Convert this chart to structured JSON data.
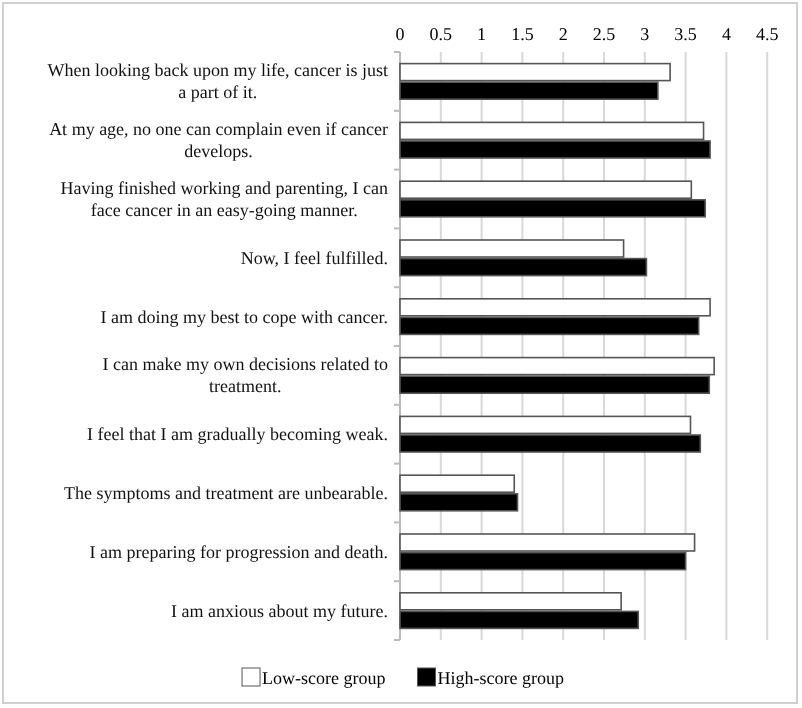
{
  "chart_data": {
    "type": "bar",
    "orientation": "horizontal",
    "categories": [
      "When looking back upon my life, cancer is just a part of it.",
      "At my age, no one can complain even if cancer develops.",
      "Having finished working and parenting, I can face cancer in an easy-going manner.",
      "Now, I feel fulfilled.",
      "I am doing my best to cope with cancer.",
      "I can make my own decisions related to treatment.",
      "I feel that I am gradually becoming weak.",
      "The symptoms and treatment are unbearable.",
      "I am preparing for progression and death.",
      "I am anxious about my future."
    ],
    "series": [
      {
        "name": "Low-score group",
        "color": "#ffffff",
        "values": [
          3.31,
          3.72,
          3.57,
          2.74,
          3.8,
          3.85,
          3.56,
          1.4,
          3.61,
          2.71
        ]
      },
      {
        "name": "High-score group",
        "color": "#000000",
        "values": [
          3.16,
          3.8,
          3.74,
          3.02,
          3.66,
          3.79,
          3.68,
          1.44,
          3.5,
          2.92
        ]
      }
    ],
    "xlim": [
      0,
      4.5
    ],
    "xticks": [
      0,
      0.5,
      1,
      1.5,
      2,
      2.5,
      3,
      3.5,
      4,
      4.5
    ],
    "grid": "x",
    "legend": "bottom"
  }
}
